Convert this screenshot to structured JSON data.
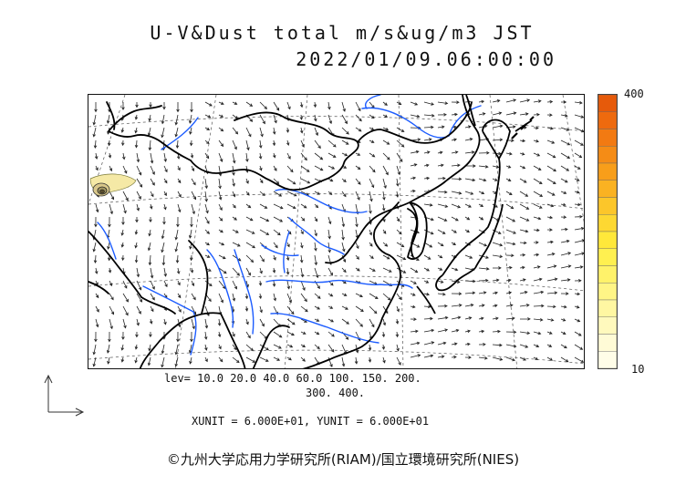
{
  "title": {
    "line1": "U-V&Dust total m/s&ug/m3 JST",
    "line2": "2022/01/09.06:00:00"
  },
  "colorbar": {
    "max_label": "400",
    "min_label": "10",
    "colors": [
      "#e65a0a",
      "#ee6a0e",
      "#f27a12",
      "#f58c16",
      "#f89e1a",
      "#fab222",
      "#fcc62a",
      "#fdd832",
      "#ffe83a",
      "#fff050",
      "#fff26a",
      "#fff586",
      "#fff7a2",
      "#fff9bd",
      "#fffbd6",
      "#fffde8"
    ]
  },
  "legend": {
    "levels_line1": "lev= 10.0 20.0 40.0 60.0 100. 150. 200.",
    "levels_line2": "300. 400.",
    "units": "XUNIT = 6.000E+01, YUNIT = 6.000E+01"
  },
  "footer": "©九州大学応用力学研究所(RIAM)/国立環境研究所(NIES)",
  "map": {
    "dust_fill_color": "#f5e9a6",
    "coast_color": "#000000",
    "river_color": "#1c5cff",
    "grid_color": "#555555"
  }
}
